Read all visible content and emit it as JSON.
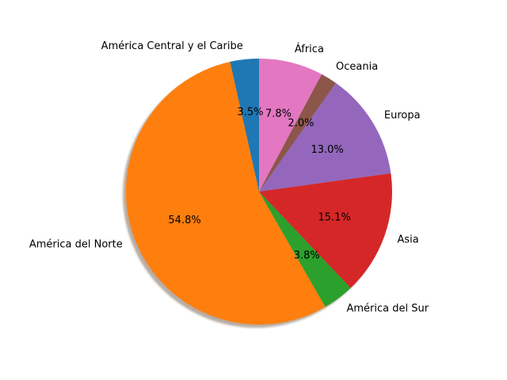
{
  "chart_data": {
    "type": "pie",
    "title": "",
    "start_angle_deg": 90,
    "direction": "counterclockwise",
    "shadow": true,
    "slices": [
      {
        "label": "América Central y el Caribe",
        "value": 3.5,
        "pct_label": "3.5%",
        "color": "#1f77b4"
      },
      {
        "label": "América del Norte",
        "value": 54.8,
        "pct_label": "54.8%",
        "color": "#ff7f0e"
      },
      {
        "label": "América del Sur",
        "value": 3.8,
        "pct_label": "3.8%",
        "color": "#2ca02c"
      },
      {
        "label": "Asia",
        "value": 15.1,
        "pct_label": "15.1%",
        "color": "#d62728"
      },
      {
        "label": "Europa",
        "value": 13.0,
        "pct_label": "13.0%",
        "color": "#9467bd"
      },
      {
        "label": "Oceania",
        "value": 2.0,
        "pct_label": "2.0%",
        "color": "#8c564b"
      },
      {
        "label": "África",
        "value": 7.8,
        "pct_label": "7.8%",
        "color": "#e377c2"
      }
    ]
  }
}
